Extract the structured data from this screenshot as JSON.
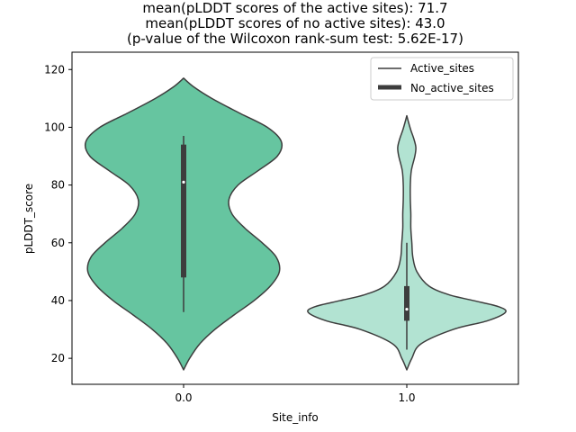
{
  "chart_data": {
    "type": "violin",
    "title_lines": [
      "mean(pLDDT scores of the active sites): 71.7",
      "mean(pLDDT scores of no active sites): 43.0",
      "(p-value of the Wilcoxon rank-sum test: 5.62E-17)"
    ],
    "xlabel": "Site_info",
    "ylabel": "pLDDT_score",
    "categories": [
      "0.0",
      "1.0"
    ],
    "ylim": [
      11,
      126
    ],
    "yticks": [
      20,
      40,
      60,
      80,
      100,
      120
    ],
    "legend": [
      "Active_sites",
      "No_active_sites"
    ],
    "colors": {
      "active": "#66c5a0",
      "no_active": "#b2e3d2",
      "outline": "#3d3d3d"
    },
    "series": [
      {
        "name": "Active_sites",
        "category": "0.0",
        "median": 81,
        "q1": 48,
        "q3": 94,
        "whisker_low": 36,
        "whisker_high": 97,
        "profile": [
          [
            16,
            0.0
          ],
          [
            20,
            0.06
          ],
          [
            25,
            0.16
          ],
          [
            30,
            0.31
          ],
          [
            35,
            0.5
          ],
          [
            40,
            0.7
          ],
          [
            45,
            0.86
          ],
          [
            50,
            0.95
          ],
          [
            55,
            0.92
          ],
          [
            60,
            0.78
          ],
          [
            65,
            0.61
          ],
          [
            70,
            0.48
          ],
          [
            75,
            0.45
          ],
          [
            80,
            0.54
          ],
          [
            85,
            0.74
          ],
          [
            90,
            0.93
          ],
          [
            95,
            0.97
          ],
          [
            100,
            0.83
          ],
          [
            105,
            0.55
          ],
          [
            110,
            0.28
          ],
          [
            114,
            0.1
          ],
          [
            117,
            0.0
          ]
        ]
      },
      {
        "name": "No_active_sites",
        "category": "1.0",
        "median": 37,
        "q1": 33,
        "q3": 45,
        "whisker_low": 23,
        "whisker_high": 60,
        "profile": [
          [
            16,
            0.0
          ],
          [
            20,
            0.05
          ],
          [
            25,
            0.14
          ],
          [
            30,
            0.46
          ],
          [
            33,
            0.8
          ],
          [
            36,
            0.98
          ],
          [
            38,
            0.9
          ],
          [
            40,
            0.66
          ],
          [
            42,
            0.42
          ],
          [
            45,
            0.22
          ],
          [
            50,
            0.1
          ],
          [
            55,
            0.06
          ],
          [
            60,
            0.05
          ],
          [
            65,
            0.04
          ],
          [
            70,
            0.04
          ],
          [
            75,
            0.035
          ],
          [
            80,
            0.035
          ],
          [
            85,
            0.045
          ],
          [
            90,
            0.08
          ],
          [
            93,
            0.09
          ],
          [
            96,
            0.07
          ],
          [
            99,
            0.04
          ],
          [
            102,
            0.015
          ],
          [
            104,
            0.0
          ]
        ]
      }
    ]
  }
}
